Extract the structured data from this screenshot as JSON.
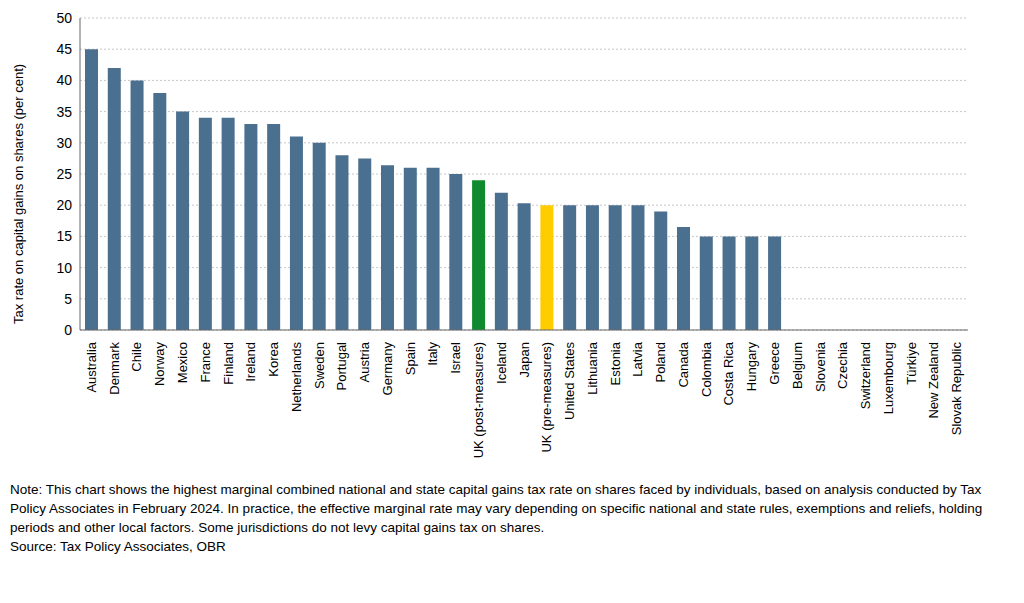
{
  "chart_data": {
    "type": "bar",
    "y_label": "Tax rate on capital gains on shares (per cent)",
    "categories": [
      "Australia",
      "Denmark",
      "Chile",
      "Norway",
      "Mexico",
      "France",
      "Finland",
      "Ireland",
      "Korea",
      "Netherlands",
      "Sweden",
      "Portugal",
      "Austria",
      "Germany",
      "Spain",
      "Italy",
      "Israel",
      "UK (post-measures)",
      "Iceland",
      "Japan",
      "UK (pre-measures)",
      "United States",
      "Lithuania",
      "Estonia",
      "Latvia",
      "Poland",
      "Canada",
      "Colombia",
      "Costa Rica",
      "Hungary",
      "Greece",
      "Belgium",
      "Slovenia",
      "Czechia",
      "Switzerland",
      "Luxembourg",
      "Türkiye",
      "New Zealand",
      "Slovak Republic"
    ],
    "values": [
      45,
      42,
      40,
      38,
      35,
      34,
      34,
      33,
      33,
      31,
      30,
      28,
      27.5,
      26.4,
      26,
      26,
      25,
      24,
      22,
      20.3,
      20,
      20,
      20,
      20,
      20,
      19,
      16.5,
      15,
      15,
      15,
      15,
      0,
      0,
      0,
      0,
      0,
      0,
      0,
      0
    ],
    "colors": [
      "#4a6f8f",
      "#4a6f8f",
      "#4a6f8f",
      "#4a6f8f",
      "#4a6f8f",
      "#4a6f8f",
      "#4a6f8f",
      "#4a6f8f",
      "#4a6f8f",
      "#4a6f8f",
      "#4a6f8f",
      "#4a6f8f",
      "#4a6f8f",
      "#4a6f8f",
      "#4a6f8f",
      "#4a6f8f",
      "#4a6f8f",
      "#0f8a2e",
      "#4a6f8f",
      "#4a6f8f",
      "#ffcc00",
      "#4a6f8f",
      "#4a6f8f",
      "#4a6f8f",
      "#4a6f8f",
      "#4a6f8f",
      "#4a6f8f",
      "#4a6f8f",
      "#4a6f8f",
      "#4a6f8f",
      "#4a6f8f",
      "#4a6f8f",
      "#4a6f8f",
      "#4a6f8f",
      "#4a6f8f",
      "#4a6f8f",
      "#4a6f8f",
      "#4a6f8f",
      "#4a6f8f"
    ],
    "ylim": [
      0,
      50
    ],
    "yticks": [
      0,
      5,
      10,
      15,
      20,
      25,
      30,
      35,
      40,
      45,
      50
    ],
    "grid": true,
    "note": "Note: This chart shows the highest marginal combined national and state capital gains tax rate on shares faced by individuals, based on analysis conducted by Tax Policy Associates in February 2024. In practice, the effective marginal rate may vary depending on specific national and state rules, exemptions and reliefs, holding periods and other local factors. Some jurisdictions do not levy capital gains tax on shares.",
    "source": "Source: Tax Policy Associates, OBR"
  }
}
